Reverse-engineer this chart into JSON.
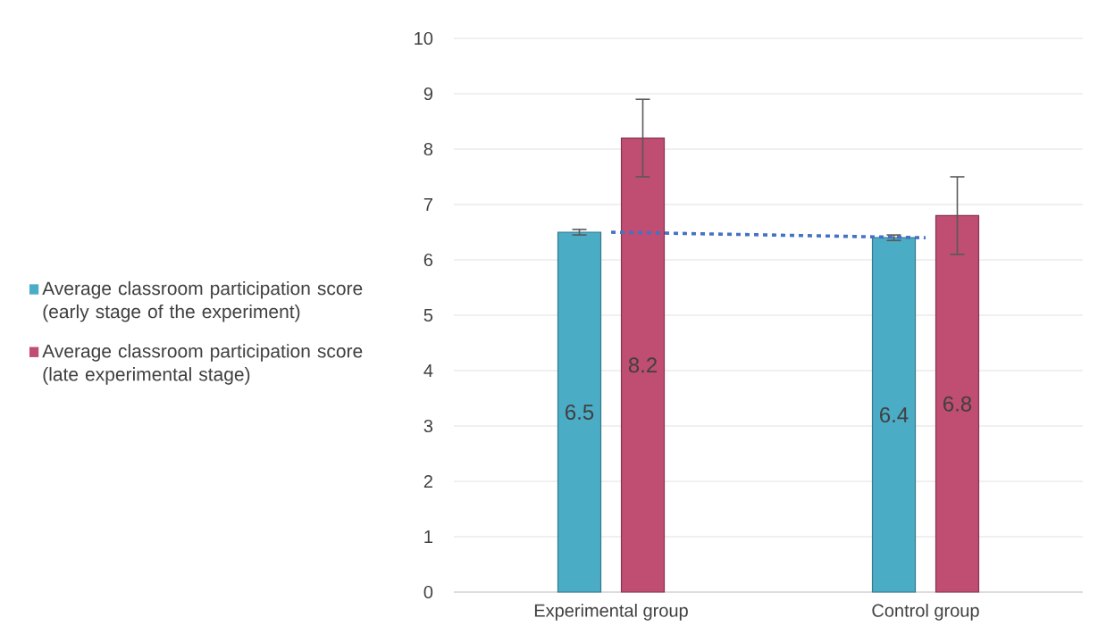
{
  "chart_data": {
    "type": "bar",
    "categories": [
      "Experimental group",
      "Control group"
    ],
    "series": [
      {
        "name": "Average classroom participation score (early stage of the experiment)",
        "color": "#4bacc6",
        "values": [
          6.5,
          6.4
        ],
        "errors": [
          0.05,
          0.05
        ],
        "value_labels": [
          "6.5",
          "6.4"
        ]
      },
      {
        "name": "Average classroom participation score (late experimental stage)",
        "color": "#c04d72",
        "values": [
          8.2,
          6.8
        ],
        "errors": [
          0.7,
          0.7
        ],
        "value_labels": [
          "8.2",
          "6.8"
        ]
      },
      {
        "type": "line",
        "color": "#4472c4",
        "line_style": "dotted",
        "values": [
          6.5,
          6.4
        ]
      }
    ],
    "ylim": [
      0,
      10
    ],
    "yticks": [
      0,
      1,
      2,
      3,
      4,
      5,
      6,
      7,
      8,
      9,
      10
    ],
    "grid": "y",
    "legend": "left"
  }
}
